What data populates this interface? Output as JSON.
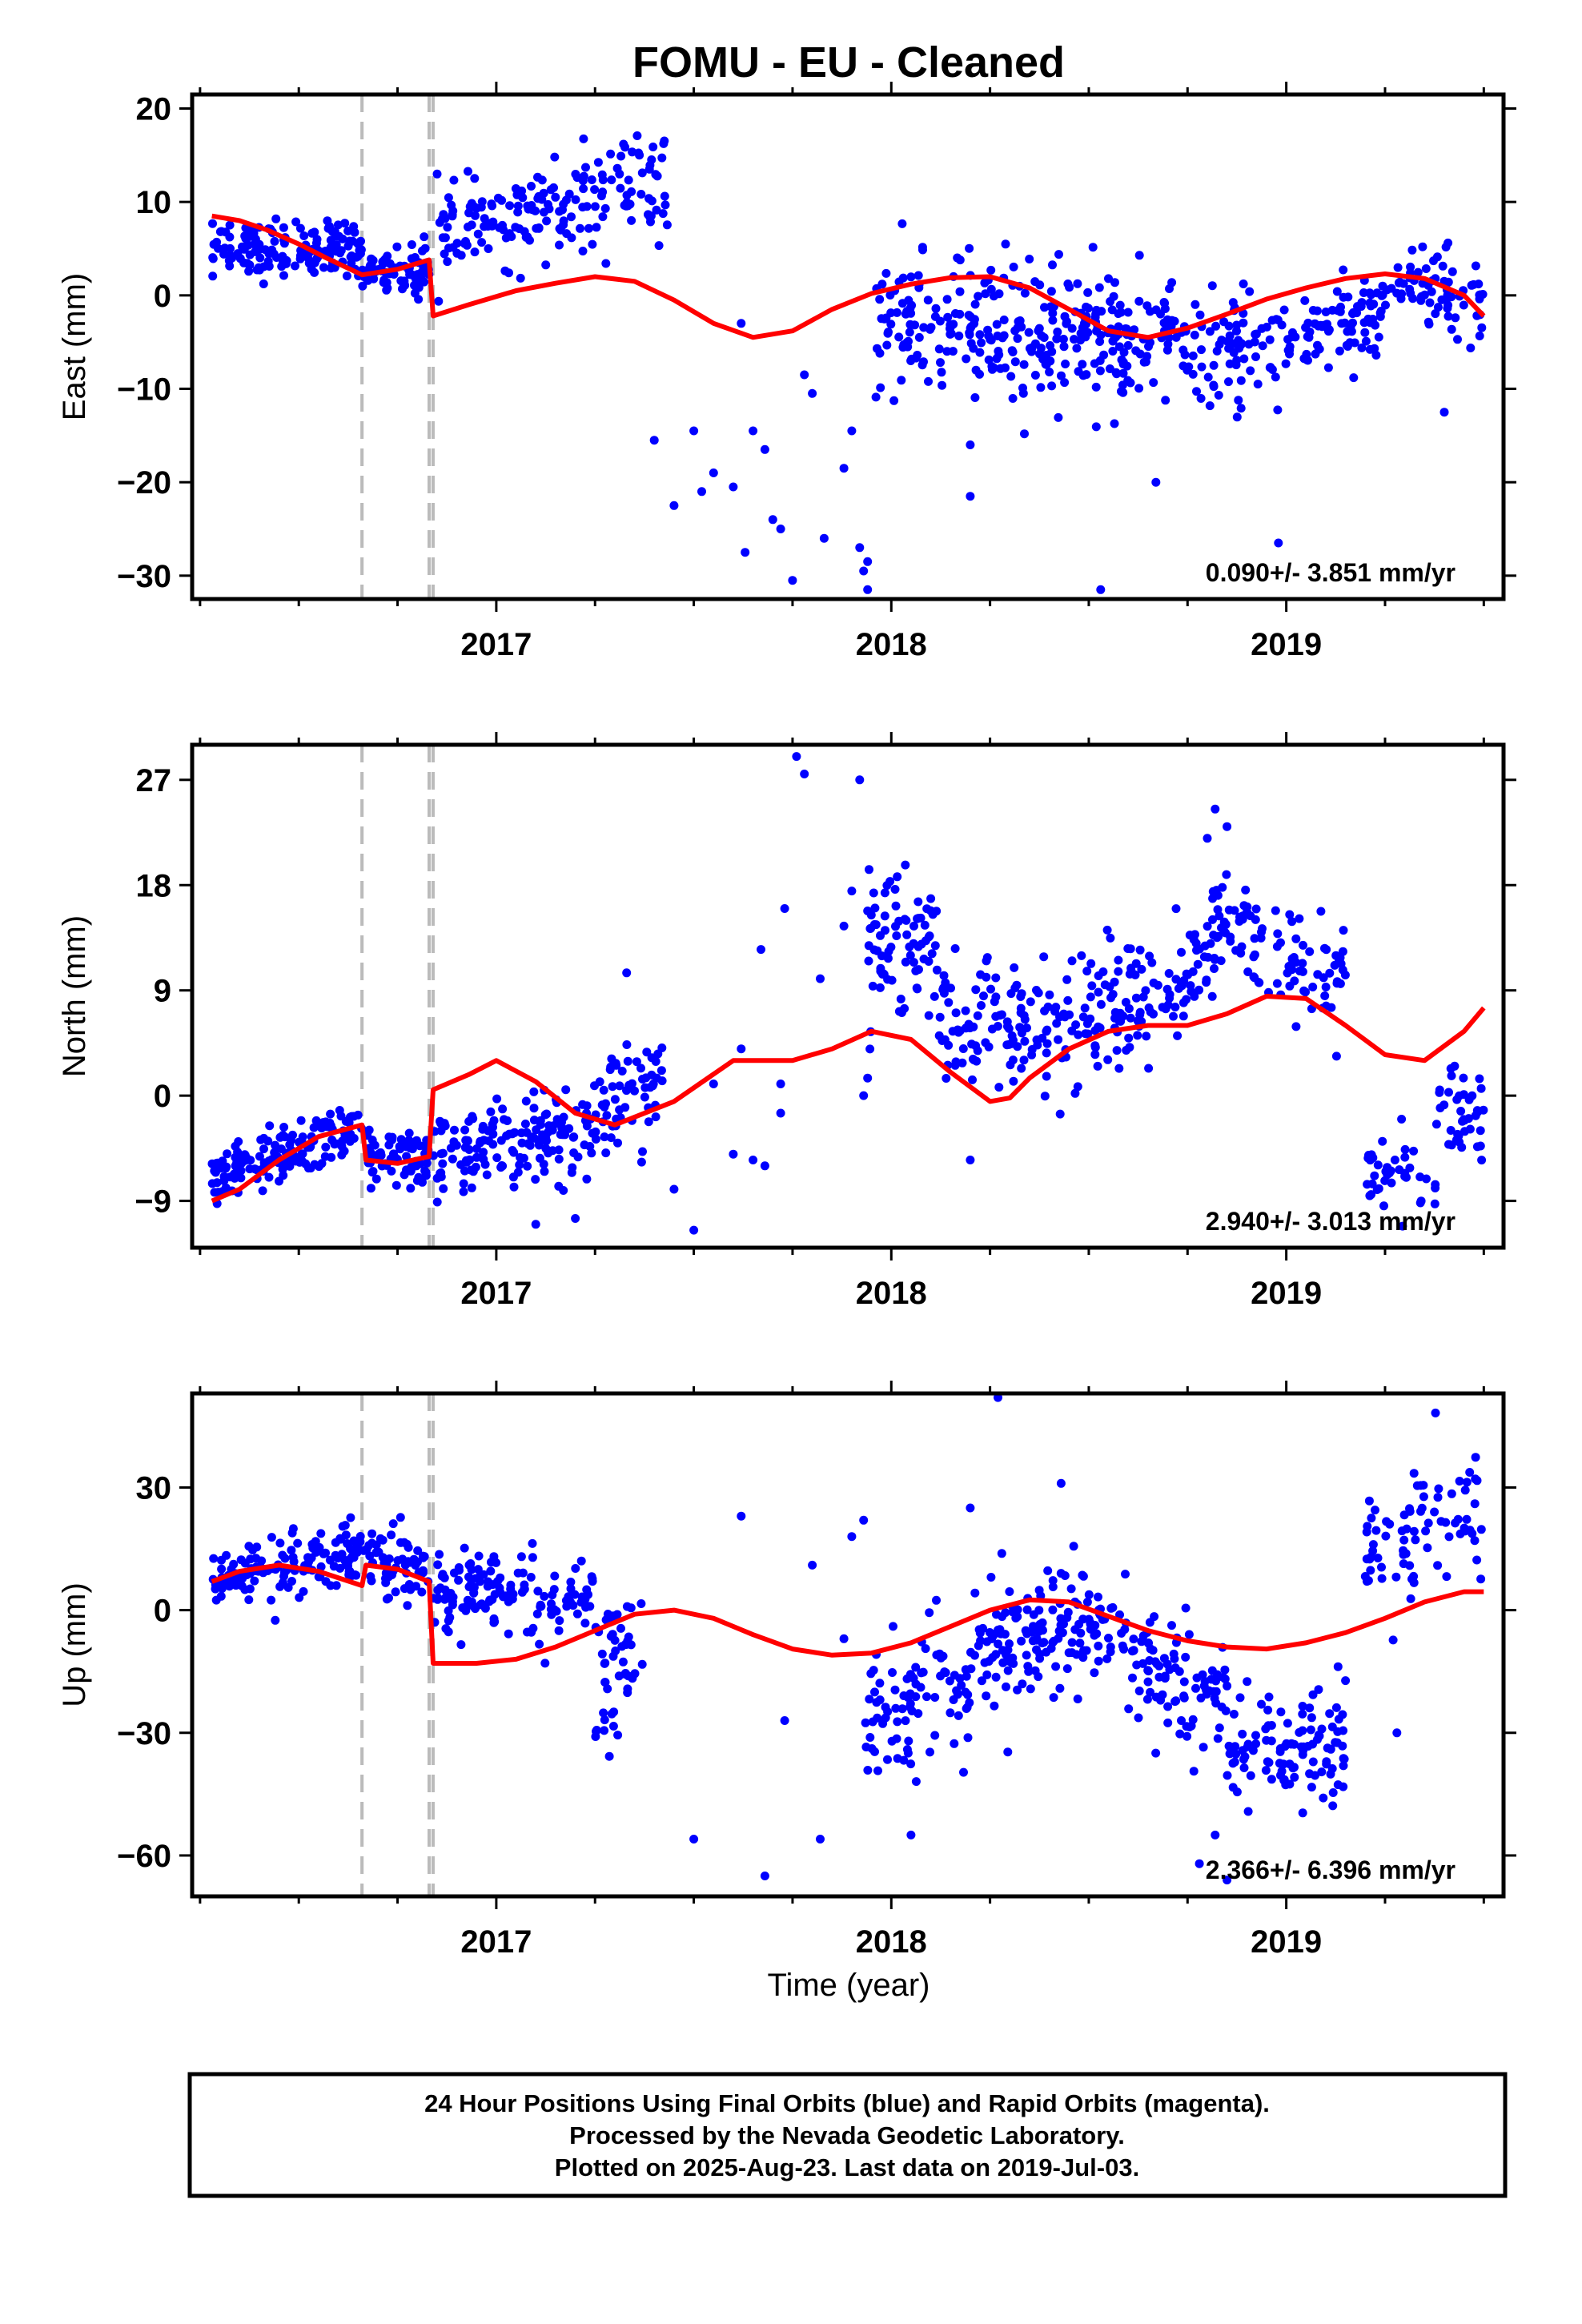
{
  "colors": {
    "final_orbits": "#0000ff",
    "model_fit": "#ff0000",
    "event_lines": "#bbbbbb",
    "frame": "#000000"
  },
  "chart_data": [
    {
      "type": "scatter",
      "panel": "east",
      "title": "FOMU  - EU - Cleaned",
      "ylabel": "East (mm)",
      "xlabel": "",
      "xlim": [
        2016.23,
        2019.55
      ],
      "ylim": [
        -32.5,
        21.5
      ],
      "yticks": [
        -30,
        -20,
        -10,
        0,
        10,
        20
      ],
      "xticks": [
        2017,
        2018,
        2019
      ],
      "xtick_labels": [
        "2017",
        "2018",
        "2019"
      ],
      "rate_text": "0.090+/- 3.851 mm/yr",
      "event_lines": [
        2016.66,
        2016.83,
        2016.84
      ],
      "fit": {
        "x": [
          2016.28,
          2016.35,
          2016.42,
          2016.5,
          2016.57,
          2016.66,
          2016.75,
          2016.83,
          2016.84,
          2016.93,
          2017.05,
          2017.15,
          2017.25,
          2017.35,
          2017.45,
          2017.55,
          2017.65,
          2017.75,
          2017.85,
          2017.95,
          2018.05,
          2018.15,
          2018.25,
          2018.35,
          2018.45,
          2018.55,
          2018.65,
          2018.75,
          2018.85,
          2018.95,
          2019.05,
          2019.15,
          2019.25,
          2019.35,
          2019.45,
          2019.5
        ],
        "y": [
          8.5,
          8,
          7,
          5.5,
          4,
          2.2,
          2.8,
          3.8,
          -2.2,
          -1,
          0.5,
          1.3,
          2,
          1.5,
          -0.5,
          -3,
          -4.5,
          -3.8,
          -1.5,
          0.2,
          1.2,
          1.9,
          2,
          0.8,
          -1.5,
          -3.8,
          -4.5,
          -3.5,
          -2,
          -0.4,
          0.8,
          1.8,
          2.3,
          1.8,
          0,
          -2.2
        ]
      },
      "clusters": [
        {
          "x0": 2016.28,
          "x1": 2016.66,
          "yc": [
            4.5,
            5.5,
            5
          ],
          "spread": 1.5,
          "n": 150
        },
        {
          "x0": 2016.66,
          "x1": 2016.83,
          "yc": [
            3,
            2.5
          ],
          "spread": 1.3,
          "n": 70
        },
        {
          "x0": 2016.85,
          "x1": 2017.2,
          "yc": [
            7,
            9
          ],
          "spread": 2.2,
          "n": 110
        },
        {
          "x0": 2017.2,
          "x1": 2017.44,
          "yc": [
            10,
            12
          ],
          "spread": 3,
          "n": 70
        },
        {
          "x0": 2017.96,
          "x1": 2018.6,
          "yc": [
            -4,
            -4
          ],
          "spread": 3.8,
          "n": 260
        },
        {
          "x0": 2018.55,
          "x1": 2018.98,
          "yc": [
            -5,
            -6
          ],
          "spread": 3,
          "n": 140
        },
        {
          "x0": 2018.98,
          "x1": 2019.25,
          "yc": [
            -5,
            -1.5
          ],
          "spread": 2.2,
          "n": 90
        },
        {
          "x0": 2019.25,
          "x1": 2019.5,
          "yc": [
            1,
            0
          ],
          "spread": 2.2,
          "n": 70
        }
      ],
      "extra_points": [
        [
          2017.4,
          -15.5
        ],
        [
          2017.45,
          -22.5
        ],
        [
          2017.5,
          -14.5
        ],
        [
          2017.52,
          -21
        ],
        [
          2017.55,
          -19
        ],
        [
          2017.6,
          -20.5
        ],
        [
          2017.62,
          -3
        ],
        [
          2017.63,
          -27.5
        ],
        [
          2017.65,
          -14.5
        ],
        [
          2017.68,
          -16.5
        ],
        [
          2017.7,
          -24
        ],
        [
          2017.72,
          -25
        ],
        [
          2017.75,
          -30.5
        ],
        [
          2017.78,
          -8.5
        ],
        [
          2017.8,
          -10.5
        ],
        [
          2017.83,
          -26
        ],
        [
          2017.88,
          -18.5
        ],
        [
          2017.9,
          -14.5
        ],
        [
          2017.92,
          -27
        ],
        [
          2017.93,
          -29.5
        ],
        [
          2017.94,
          -31.5
        ],
        [
          2017.94,
          -28.5
        ],
        [
          2018.2,
          -16
        ],
        [
          2018.2,
          -21.5
        ],
        [
          2018.53,
          -31.5
        ],
        [
          2018.67,
          -20
        ],
        [
          2018.98,
          -26.5
        ],
        [
          2019.4,
          -12.5
        ]
      ]
    },
    {
      "type": "scatter",
      "panel": "north",
      "ylabel": "North (mm)",
      "xlabel": "",
      "xlim": [
        2016.23,
        2019.55
      ],
      "ylim": [
        -13,
        30
      ],
      "yticks": [
        -9,
        0,
        9,
        18,
        27
      ],
      "xticks": [
        2017,
        2018,
        2019
      ],
      "xtick_labels": [
        "2017",
        "2018",
        "2019"
      ],
      "rate_text": "2.940+/- 3.013 mm/yr",
      "event_lines": [
        2016.66,
        2016.83,
        2016.84
      ],
      "fit": {
        "x": [
          2016.28,
          2016.35,
          2016.45,
          2016.55,
          2016.66,
          2016.67,
          2016.75,
          2016.83,
          2016.84,
          2016.93,
          2017,
          2017.1,
          2017.2,
          2017.3,
          2017.45,
          2017.6,
          2017.75,
          2017.85,
          2017.95,
          2018.05,
          2018.15,
          2018.25,
          2018.3,
          2018.35,
          2018.45,
          2018.55,
          2018.65,
          2018.75,
          2018.85,
          2018.95,
          2019.05,
          2019.15,
          2019.25,
          2019.35,
          2019.45,
          2019.5
        ],
        "y": [
          -9,
          -8,
          -5.5,
          -3.5,
          -2.5,
          -5.5,
          -5.8,
          -5.2,
          0.5,
          1.8,
          3,
          1.2,
          -1.5,
          -2.5,
          -0.5,
          3,
          3,
          4,
          5.5,
          4.8,
          2,
          -0.5,
          -0.2,
          1.5,
          4,
          5.5,
          6,
          6,
          7,
          8.5,
          8.3,
          6,
          3.5,
          3,
          5.5,
          7.5
        ]
      },
      "clusters": [
        {
          "x0": 2016.28,
          "x1": 2016.66,
          "yc": [
            -7,
            -3
          ],
          "spread": 1.3,
          "n": 150
        },
        {
          "x0": 2016.66,
          "x1": 2016.83,
          "yc": [
            -5.5,
            -5.5
          ],
          "spread": 1.2,
          "n": 70
        },
        {
          "x0": 2016.84,
          "x1": 2017.25,
          "yc": [
            -5,
            -3
          ],
          "spread": 1.8,
          "n": 160
        },
        {
          "x0": 2017.25,
          "x1": 2017.42,
          "yc": [
            -2,
            1
          ],
          "spread": 2.2,
          "n": 60
        },
        {
          "x0": 2017.94,
          "x1": 2018.12,
          "yc": [
            14,
            13
          ],
          "spread": 3,
          "n": 80
        },
        {
          "x0": 2018.12,
          "x1": 2018.6,
          "yc": [
            6,
            7
          ],
          "spread": 2.8,
          "n": 170
        },
        {
          "x0": 2018.6,
          "x1": 2018.8,
          "yc": [
            8,
            10
          ],
          "spread": 2.5,
          "n": 70
        },
        {
          "x0": 2018.8,
          "x1": 2019.15,
          "yc": [
            15,
            9
          ],
          "spread": 2.6,
          "n": 110
        },
        {
          "x0": 2019.2,
          "x1": 2019.38,
          "yc": [
            -7,
            -7
          ],
          "spread": 2,
          "n": 40
        },
        {
          "x0": 2019.38,
          "x1": 2019.5,
          "yc": [
            -1,
            -2
          ],
          "spread": 2,
          "n": 40
        }
      ],
      "extra_points": [
        [
          2017.1,
          -11
        ],
        [
          2017.2,
          -10.5
        ],
        [
          2017.33,
          10.5
        ],
        [
          2017.45,
          -8
        ],
        [
          2017.5,
          -11.5
        ],
        [
          2017.55,
          1
        ],
        [
          2017.6,
          -5
        ],
        [
          2017.62,
          4
        ],
        [
          2017.65,
          -5.5
        ],
        [
          2017.67,
          12.5
        ],
        [
          2017.68,
          -6
        ],
        [
          2017.72,
          1
        ],
        [
          2017.72,
          -1.5
        ],
        [
          2017.73,
          16
        ],
        [
          2017.76,
          29
        ],
        [
          2017.78,
          27.5
        ],
        [
          2017.82,
          10
        ],
        [
          2017.88,
          14.5
        ],
        [
          2017.9,
          17.5
        ],
        [
          2017.92,
          27
        ],
        [
          2017.93,
          0
        ],
        [
          2017.94,
          1.5
        ],
        [
          2018.2,
          -5.5
        ],
        [
          2018.8,
          22
        ],
        [
          2018.82,
          24.5
        ],
        [
          2018.85,
          23
        ]
      ]
    },
    {
      "type": "scatter",
      "panel": "up",
      "ylabel": "Up (mm)",
      "xlabel": "Time (year)",
      "xlim": [
        2016.23,
        2019.55
      ],
      "ylim": [
        -70,
        53
      ],
      "yticks": [
        -60,
        -30,
        0,
        30
      ],
      "xticks": [
        2017,
        2018,
        2019
      ],
      "xtick_labels": [
        "2017",
        "2018",
        "2019"
      ],
      "rate_text": "2.366+/- 6.396 mm/yr",
      "event_lines": [
        2016.66,
        2016.83,
        2016.84
      ],
      "fit": {
        "x": [
          2016.28,
          2016.35,
          2016.45,
          2016.55,
          2016.66,
          2016.67,
          2016.75,
          2016.83,
          2016.84,
          2016.95,
          2017.05,
          2017.15,
          2017.25,
          2017.35,
          2017.45,
          2017.55,
          2017.65,
          2017.75,
          2017.85,
          2017.95,
          2018.05,
          2018.15,
          2018.25,
          2018.35,
          2018.45,
          2018.55,
          2018.65,
          2018.75,
          2018.85,
          2018.95,
          2019.05,
          2019.15,
          2019.25,
          2019.35,
          2019.45,
          2019.5
        ],
        "y": [
          7,
          9.5,
          11,
          9.5,
          6,
          11,
          10,
          7,
          -13,
          -13,
          -12,
          -9,
          -5,
          -1,
          0,
          -2,
          -6,
          -9.5,
          -11,
          -10.5,
          -8,
          -4,
          0,
          2.5,
          2,
          -1.5,
          -5,
          -7.5,
          -9,
          -9.5,
          -8,
          -5.5,
          -2,
          2,
          4.5,
          4.5
        ]
      },
      "clusters": [
        {
          "x0": 2016.28,
          "x1": 2016.66,
          "yc": [
            7,
            13
          ],
          "spread": 4,
          "n": 140
        },
        {
          "x0": 2016.66,
          "x1": 2016.83,
          "yc": [
            13,
            8
          ],
          "spread": 4,
          "n": 60
        },
        {
          "x0": 2016.84,
          "x1": 2017.25,
          "yc": [
            5,
            3
          ],
          "spread": 5,
          "n": 140
        },
        {
          "x0": 2017.25,
          "x1": 2017.37,
          "yc": [
            -12,
            -12
          ],
          "spread": 10,
          "n": 50
        },
        {
          "x0": 2017.93,
          "x1": 2018.2,
          "yc": [
            -25,
            -18
          ],
          "spread": 8,
          "n": 90
        },
        {
          "x0": 2018.2,
          "x1": 2018.6,
          "yc": [
            -10,
            0
          ],
          "spread": 8,
          "n": 160
        },
        {
          "x0": 2018.6,
          "x1": 2018.85,
          "yc": [
            -15,
            -20
          ],
          "spread": 7,
          "n": 90
        },
        {
          "x0": 2018.85,
          "x1": 2019.15,
          "yc": [
            -35,
            -32
          ],
          "spread": 7,
          "n": 110
        },
        {
          "x0": 2019.2,
          "x1": 2019.5,
          "yc": [
            12,
            25
          ],
          "spread": 8,
          "n": 80
        }
      ],
      "extra_points": [
        [
          2017.5,
          -56
        ],
        [
          2017.62,
          23
        ],
        [
          2017.68,
          -65
        ],
        [
          2017.73,
          -27
        ],
        [
          2017.8,
          11
        ],
        [
          2017.82,
          -56
        ],
        [
          2017.88,
          -7
        ],
        [
          2017.9,
          18
        ],
        [
          2017.93,
          22
        ],
        [
          2018.05,
          -55
        ],
        [
          2018.2,
          25
        ],
        [
          2018.27,
          52
        ],
        [
          2018.43,
          31
        ],
        [
          2018.78,
          -62
        ],
        [
          2018.82,
          -55
        ],
        [
          2018.85,
          -66
        ],
        [
          2019.28,
          -30
        ]
      ]
    }
  ],
  "caption": {
    "line1": "24 Hour Positions Using Final Orbits (blue) and Rapid Orbits (magenta).",
    "line2": "Processed by the Nevada Geodetic Laboratory.",
    "line3": "Plotted on 2025-Aug-23. Last data on 2019-Jul-03."
  }
}
